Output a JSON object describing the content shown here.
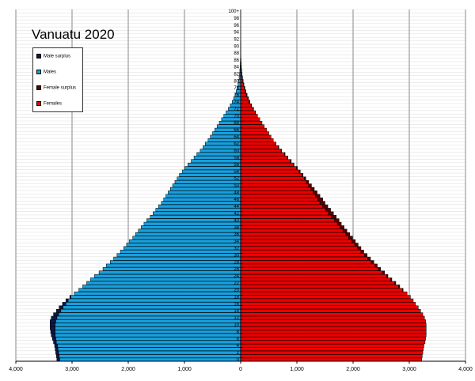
{
  "chart_data": {
    "type": "bar",
    "title": "Vanuatu 2020",
    "orientation": "horizontal-population-pyramid",
    "xlim": [
      -4000,
      4000
    ],
    "x_ticks": [
      {
        "value": -4000,
        "label": "4,000"
      },
      {
        "value": -3000,
        "label": "3,000"
      },
      {
        "value": -2000,
        "label": "2,000"
      },
      {
        "value": -1000,
        "label": "1,000"
      },
      {
        "value": 0,
        "label": "0"
      },
      {
        "value": 1000,
        "label": "1,000"
      },
      {
        "value": 2000,
        "label": "2,000"
      },
      {
        "value": 3000,
        "label": "3,000"
      },
      {
        "value": 4000,
        "label": "4,000"
      }
    ],
    "ages": [
      0,
      1,
      2,
      3,
      4,
      5,
      6,
      7,
      8,
      9,
      10,
      11,
      12,
      13,
      14,
      15,
      16,
      17,
      18,
      19,
      20,
      21,
      22,
      23,
      24,
      25,
      26,
      27,
      28,
      29,
      30,
      31,
      32,
      33,
      34,
      35,
      36,
      37,
      38,
      39,
      40,
      41,
      42,
      43,
      44,
      45,
      46,
      47,
      48,
      49,
      50,
      51,
      52,
      53,
      54,
      55,
      56,
      57,
      58,
      59,
      60,
      61,
      62,
      63,
      64,
      65,
      66,
      67,
      68,
      69,
      70,
      71,
      72,
      73,
      74,
      75,
      76,
      77,
      78,
      79,
      80,
      81,
      82,
      83,
      84,
      85,
      86,
      87,
      88,
      89,
      90,
      91,
      92,
      93,
      94,
      95,
      96,
      97,
      98,
      99,
      100
    ],
    "age_tick_labels": [
      "0",
      "2",
      "4",
      "6",
      "8",
      "10",
      "12",
      "14",
      "16",
      "18",
      "20",
      "22",
      "24",
      "26",
      "28",
      "30",
      "32",
      "34",
      "36",
      "38",
      "40",
      "42",
      "44",
      "46",
      "48",
      "50",
      "52",
      "54",
      "56",
      "58",
      "60",
      "62",
      "64",
      "66",
      "68",
      "70",
      "72",
      "74",
      "76",
      "78",
      "80",
      "82",
      "84",
      "86",
      "88",
      "90",
      "92",
      "94",
      "96",
      "98",
      "100+"
    ],
    "legend": [
      {
        "label": "Male surplus",
        "color": "#0a1a4a"
      },
      {
        "label": "Males",
        "color": "#18a0de"
      },
      {
        "label": "Female surplus",
        "color": "#5a0000"
      },
      {
        "label": "Females",
        "color": "#ee0000"
      }
    ],
    "series": [
      {
        "name": "Males",
        "color": "#18a0de",
        "values": [
          3270,
          3280,
          3290,
          3300,
          3310,
          3330,
          3350,
          3370,
          3380,
          3390,
          3390,
          3390,
          3370,
          3330,
          3280,
          3230,
          3170,
          3110,
          3040,
          2960,
          2880,
          2810,
          2740,
          2670,
          2600,
          2520,
          2450,
          2390,
          2320,
          2260,
          2200,
          2140,
          2080,
          2030,
          1980,
          1920,
          1870,
          1820,
          1770,
          1720,
          1670,
          1610,
          1560,
          1510,
          1460,
          1410,
          1370,
          1330,
          1290,
          1250,
          1210,
          1170,
          1130,
          1090,
          1040,
          990,
          940,
          880,
          830,
          780,
          720,
          670,
          630,
          580,
          540,
          500,
          460,
          420,
          380,
          340,
          300,
          260,
          220,
          185,
          150,
          125,
          100,
          80,
          62,
          48,
          37,
          28,
          21,
          15,
          10,
          7,
          5,
          3,
          2,
          1,
          1,
          1,
          0,
          0,
          0,
          0,
          0,
          0,
          0,
          0,
          0
        ]
      },
      {
        "name": "Females",
        "color": "#ee0000",
        "values": [
          3220,
          3230,
          3240,
          3250,
          3260,
          3280,
          3290,
          3300,
          3300,
          3300,
          3300,
          3290,
          3270,
          3240,
          3200,
          3160,
          3110,
          3070,
          3020,
          2960,
          2890,
          2830,
          2760,
          2690,
          2620,
          2560,
          2490,
          2430,
          2370,
          2310,
          2250,
          2190,
          2140,
          2090,
          2040,
          1990,
          1940,
          1890,
          1840,
          1790,
          1750,
          1700,
          1650,
          1600,
          1550,
          1500,
          1460,
          1410,
          1360,
          1310,
          1260,
          1210,
          1160,
          1110,
          1060,
          1010,
          950,
          900,
          840,
          790,
          730,
          680,
          630,
          580,
          540,
          500,
          460,
          420,
          380,
          340,
          300,
          265,
          230,
          195,
          165,
          140,
          115,
          95,
          75,
          58,
          45,
          34,
          25,
          18,
          13,
          9,
          6,
          4,
          3,
          2,
          1,
          1,
          0,
          0,
          0,
          0,
          0,
          0,
          0,
          0,
          0
        ]
      }
    ],
    "grid": "vertical major lines, horizontal line per age row"
  }
}
